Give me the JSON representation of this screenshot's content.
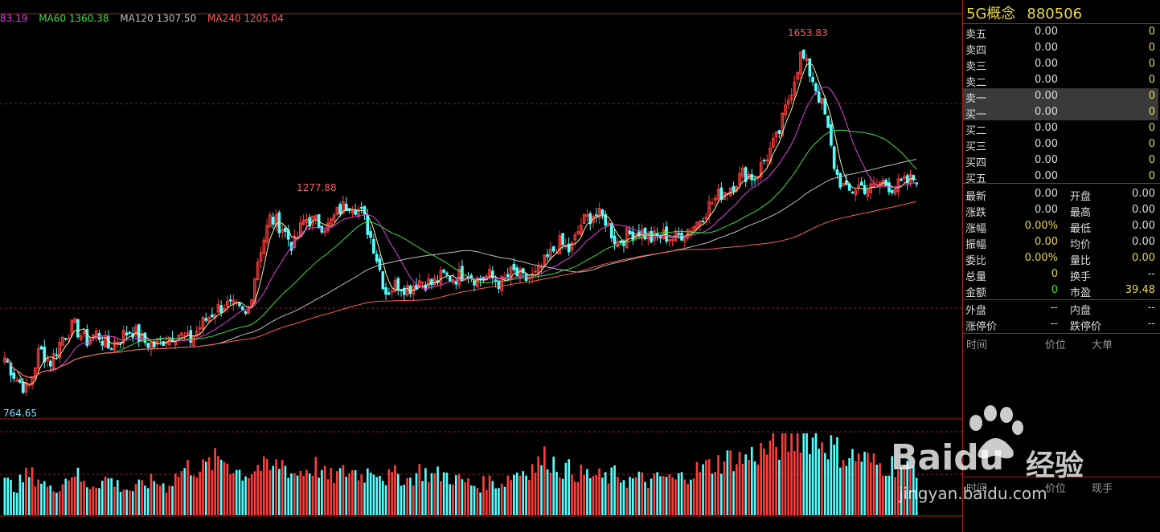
{
  "ma_legend": [
    {
      "text": "83.19",
      "color": "#e040e0"
    },
    {
      "text": "MA60 1360.38",
      "color": "#3ee13e"
    },
    {
      "text": "MA120 1307.50",
      "color": "#bdbdbd"
    },
    {
      "text": "MA240 1205.04",
      "color": "#ff5c5c"
    }
  ],
  "chart_data": {
    "type": "candlestick",
    "high_label": "1653.83",
    "mid_high_label": "1277.88",
    "low_label": "764.65",
    "ylim": [
      764.65,
      1653.83
    ],
    "series": [
      {
        "name": "MA60",
        "last": 1360.38
      },
      {
        "name": "MA120",
        "last": 1307.5
      },
      {
        "name": "MA240",
        "last": 1205.04
      }
    ],
    "close_path": [
      880,
      830,
      800,
      900,
      870,
      930,
      960,
      920,
      940,
      905,
      930,
      950,
      920,
      910,
      930,
      940,
      920,
      960,
      990,
      1010,
      1000,
      980,
      1130,
      1220,
      1200,
      1150,
      1220,
      1210,
      1200,
      1240,
      1260,
      1230,
      1150,
      1040,
      1060,
      1050,
      1070,
      1060,
      1080,
      1075,
      1090,
      1070,
      1080,
      1060,
      1090,
      1070,
      1080,
      1120,
      1160,
      1140,
      1210,
      1230,
      1220,
      1160,
      1180,
      1190,
      1170,
      1180,
      1170,
      1190,
      1210,
      1250,
      1280,
      1300,
      1330,
      1320,
      1370,
      1420,
      1520,
      1620,
      1560,
      1480,
      1330,
      1280,
      1300,
      1290,
      1310,
      1295,
      1305,
      1320
    ],
    "volume_path": [
      0.4,
      0.35,
      0.5,
      0.45,
      0.3,
      0.4,
      0.55,
      0.35,
      0.4,
      0.45,
      0.35,
      0.3,
      0.38,
      0.42,
      0.35,
      0.5,
      0.6,
      0.55,
      0.65,
      0.7,
      0.55,
      0.5,
      0.6,
      0.55,
      0.65,
      0.5,
      0.55,
      0.6,
      0.45,
      0.5,
      0.55,
      0.48,
      0.6,
      0.45,
      0.5,
      0.42,
      0.55,
      0.48,
      0.5,
      0.45,
      0.4,
      0.35,
      0.42,
      0.38,
      0.5,
      0.55,
      0.6,
      0.72,
      0.58,
      0.55,
      0.5,
      0.48,
      0.45,
      0.5,
      0.42,
      0.45,
      0.4,
      0.48,
      0.42,
      0.5,
      0.55,
      0.6,
      0.65,
      0.7,
      0.68,
      0.75,
      0.8,
      0.85,
      0.9,
      1.0,
      0.95,
      0.9,
      0.8,
      0.7,
      0.72,
      0.65,
      0.6,
      0.62,
      0.55,
      0.6
    ]
  },
  "panel": {
    "name": "5G概念",
    "code": "880506",
    "asks": [
      {
        "label": "卖五",
        "price": "0.00",
        "vol": "0"
      },
      {
        "label": "卖四",
        "price": "0.00",
        "vol": "0"
      },
      {
        "label": "卖三",
        "price": "0.00",
        "vol": "0"
      },
      {
        "label": "卖二",
        "price": "0.00",
        "vol": "0"
      },
      {
        "label": "卖一",
        "price": "0.00",
        "vol": "0"
      }
    ],
    "bids": [
      {
        "label": "买一",
        "price": "0.00",
        "vol": "0"
      },
      {
        "label": "买二",
        "price": "0.00",
        "vol": "0"
      },
      {
        "label": "买三",
        "price": "0.00",
        "vol": "0"
      },
      {
        "label": "买四",
        "price": "0.00",
        "vol": "0"
      },
      {
        "label": "买五",
        "price": "0.00",
        "vol": "0"
      }
    ],
    "quote": [
      {
        "l1": "最新",
        "v1": "0.00",
        "l2": "开盘",
        "v2": "0.00"
      },
      {
        "l1": "涨跌",
        "v1": "0.00",
        "l2": "最高",
        "v2": "0.00"
      },
      {
        "l1": "涨幅",
        "v1": "0.00%",
        "l2": "最低",
        "v2": "0.00"
      },
      {
        "l1": "振幅",
        "v1": "0.00",
        "l2": "均价",
        "v2": "0.00"
      },
      {
        "l1": "委比",
        "v1": "0.00%",
        "l2": "量比",
        "v2": "0.00"
      },
      {
        "l1": "总量",
        "v1": "0",
        "l2": "换手",
        "v2": "--"
      },
      {
        "l1": "金额",
        "v1": "0",
        "l2": "市盈",
        "v2": "39.48"
      }
    ],
    "extra": [
      {
        "l1": "外盘",
        "v1": "--",
        "l2": "内盘",
        "v2": "--"
      },
      {
        "l1": "涨停价",
        "v1": "--",
        "l2": "跌停价",
        "v2": "--"
      }
    ],
    "tick_headers": {
      "time": "时间",
      "price": "价位",
      "lot": "大单"
    },
    "tick_headers2": {
      "time": "时间",
      "price": "价位",
      "lot": "现手"
    }
  },
  "watermark": {
    "brand": "Baidu",
    "brand_cn": "经验",
    "url": "jingyan.baidu.com"
  }
}
